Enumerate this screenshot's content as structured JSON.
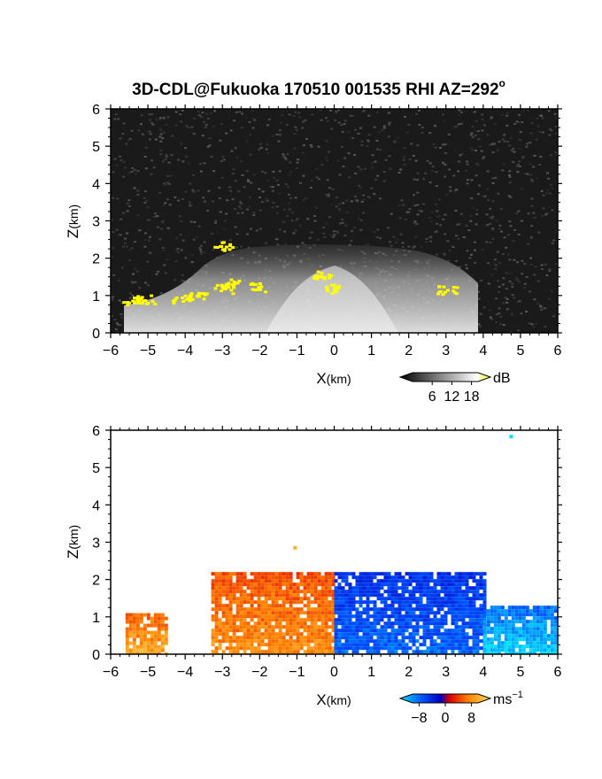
{
  "title": "3D-CDL@Fukuoka 170510 001535 RHI AZ=292",
  "title_superscript": "o",
  "chart_data": [
    {
      "type": "heatmap",
      "variable": "reflectivity",
      "xlabel": "X",
      "xunit": "(km)",
      "ylabel": "Z",
      "yunit": "(km)",
      "xlim": [
        -6,
        6
      ],
      "ylim": [
        0,
        6
      ],
      "xticks": [
        "−6",
        "−5",
        "−4",
        "−3",
        "−2",
        "−1",
        "0",
        "1",
        "2",
        "3",
        "4",
        "5",
        "6"
      ],
      "yticks": [
        "0",
        "1",
        "2",
        "3",
        "4",
        "5",
        "6"
      ],
      "colorbar": {
        "ticks": [
          "6",
          "12",
          "18"
        ],
        "unit": "dB",
        "range": [
          0,
          20
        ],
        "colors": [
          "#000000",
          "#ffffff",
          "#ffff00"
        ]
      },
      "background_color": "#1a1a1a",
      "bright_region": {
        "x_extent": [
          -5.6,
          3.6
        ],
        "top_km": 2.3,
        "center_km": 0
      },
      "highlight_color": "#ffff00",
      "highlight_clusters": [
        {
          "x": -5.45,
          "z": 0.88
        },
        {
          "x": -5.1,
          "z": 0.92
        },
        {
          "x": -4.1,
          "z": 0.95
        },
        {
          "x": -3.7,
          "z": 1.05
        },
        {
          "x": -3.0,
          "z": 1.2
        },
        {
          "x": -2.8,
          "z": 1.35
        },
        {
          "x": -3.0,
          "z": 2.35
        },
        {
          "x": -2.1,
          "z": 1.25
        },
        {
          "x": -0.35,
          "z": 1.6
        },
        {
          "x": -0.1,
          "z": 1.2
        },
        {
          "x": 3.0,
          "z": 1.18
        }
      ]
    },
    {
      "type": "heatmap",
      "variable": "radial velocity",
      "xlabel": "X",
      "xunit": "(km)",
      "ylabel": "Z",
      "yunit": "(km)",
      "xlim": [
        -6,
        6
      ],
      "ylim": [
        0,
        6
      ],
      "xticks": [
        "−6",
        "−5",
        "−4",
        "−3",
        "−2",
        "−1",
        "0",
        "1",
        "2",
        "3",
        "4",
        "5",
        "6"
      ],
      "yticks": [
        "0",
        "1",
        "2",
        "3",
        "4",
        "5",
        "6"
      ],
      "colorbar": {
        "ticks": [
          "−8",
          "0",
          "8"
        ],
        "unit": "ms",
        "unit_exponent": "−1",
        "range": [
          -10,
          10
        ],
        "colors": [
          "#00e0ff",
          "#0050ff",
          "#0000c0",
          "#e00000",
          "#ff8000",
          "#ffe060"
        ]
      },
      "regions": [
        {
          "x_extent": [
            -3.3,
            0.0
          ],
          "top_km": 2.2,
          "velocity": 6
        },
        {
          "x_extent": [
            0.0,
            4.0
          ],
          "top_km": 2.2,
          "velocity": -6
        },
        {
          "x_extent": [
            -5.6,
            -4.5
          ],
          "top_km": 1.1,
          "velocity": 7
        },
        {
          "x_extent": [
            4.0,
            6.0
          ],
          "top_km": 1.3,
          "velocity": -9
        }
      ],
      "isolated_points": [
        {
          "x": 4.75,
          "z": 5.83,
          "velocity": -10
        },
        {
          "x": -1.05,
          "z": 2.85,
          "velocity": 8
        }
      ]
    }
  ]
}
